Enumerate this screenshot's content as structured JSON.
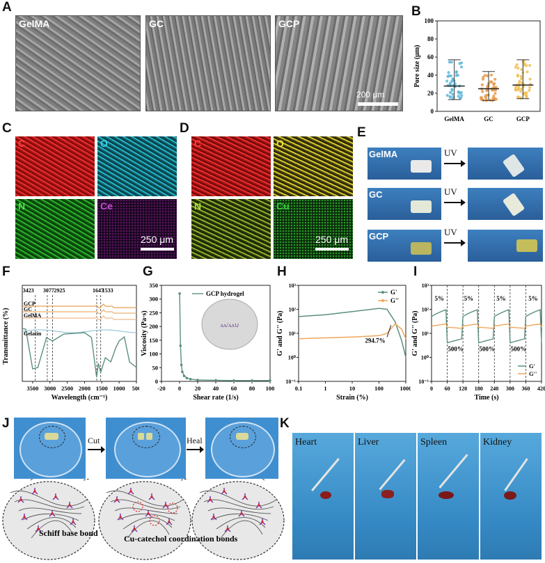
{
  "panels": {
    "A": "A",
    "B": "B",
    "C": "C",
    "D": "D",
    "E": "E",
    "F": "F",
    "G": "G",
    "H": "H",
    "I": "I",
    "J": "J",
    "K": "K"
  },
  "sem": {
    "labels": [
      "GelMA",
      "GC",
      "GCP"
    ],
    "scalebar": "200 μm"
  },
  "colors": {
    "teal": "#5b8f7f",
    "orange": "#f0a65a",
    "blueDots": "#5fb7d6",
    "orangeDots": "#e59a4a",
    "yellowDots": "#f0bf55",
    "C": "#e02020",
    "O_c": "#26b3c7",
    "N": "#2bb02b",
    "Ce": "#9a2ba0",
    "O_d": "#d6c72b",
    "Cu": "#2a9a2a"
  },
  "edsC": {
    "labels": [
      "C",
      "O",
      "N",
      "Ce"
    ],
    "scalebar": "250 μm"
  },
  "edsD": {
    "labels": [
      "C",
      "O",
      "N",
      "Cu"
    ],
    "scalebar": "250 μm"
  },
  "panelE": {
    "rows": [
      "GelMA",
      "GC",
      "GCP"
    ],
    "arrow": "UV"
  },
  "panelJ": {
    "cut": "Cut",
    "heal": "Heal",
    "bond1": "Schiff base bond",
    "bond2": "Cu-catechol coordination bonds"
  },
  "panelK": {
    "organs": [
      "Heart",
      "Liver",
      "Spleen",
      "Kidney"
    ]
  },
  "chart_data": [
    {
      "id": "B",
      "type": "scatter",
      "ylabel": "Pore size (μm)",
      "categories": [
        "GelMA",
        "GC",
        "GCP"
      ],
      "ylim": [
        0,
        100
      ],
      "yticks": [
        0,
        20,
        40,
        60,
        80,
        100
      ],
      "mean": [
        28,
        25,
        29
      ],
      "upper": [
        57,
        44,
        57
      ],
      "lower": [
        13,
        12,
        14
      ]
    },
    {
      "id": "F",
      "type": "line",
      "xlabel": "Wavelength (cm⁻¹)",
      "ylabel": "Transmittance (%)",
      "xticks": [
        3500,
        3000,
        2500,
        2000,
        1500,
        1000,
        500
      ],
      "series": [
        {
          "name": "GCP"
        },
        {
          "name": "GC"
        },
        {
          "name": "GelMA"
        },
        {
          "name": "Gelatin"
        }
      ],
      "annotations": [
        "3423",
        "3077",
        "2925",
        "1647",
        "1533"
      ]
    },
    {
      "id": "G",
      "type": "line",
      "xlabel": "Shear rate (1/s)",
      "ylabel": "Viscosity (Pa·s)",
      "xlim": [
        -20,
        100
      ],
      "ylim": [
        0,
        350
      ],
      "xticks": [
        -20,
        0,
        20,
        40,
        60,
        80,
        100
      ],
      "yticks": [
        0,
        50,
        100,
        150,
        200,
        250,
        300,
        350
      ],
      "series": [
        {
          "name": "GCP hydrogel",
          "x": [
            0.1,
            1,
            2,
            3,
            5,
            8,
            12,
            20,
            40,
            60,
            80,
            100
          ],
          "y": [
            320,
            130,
            60,
            35,
            20,
            12,
            8,
            5,
            4,
            3,
            3,
            3
          ]
        }
      ]
    },
    {
      "id": "H",
      "type": "line",
      "xlabel": "Strain (%)",
      "ylabel": "G' and G'' (Pa)",
      "xlim": [
        0.1,
        1000
      ],
      "ylim": [
        0.1,
        1000
      ],
      "xticks": [
        "0.1",
        "1",
        "10",
        "100",
        "1000"
      ],
      "yticks": [
        "10⁻¹",
        "10⁰",
        "10¹",
        "10²",
        "10³"
      ],
      "series": [
        {
          "name": "G'",
          "x": [
            0.1,
            1,
            10,
            100,
            200,
            400,
            700,
            1000
          ],
          "y": [
            50,
            60,
            80,
            110,
            100,
            30,
            5,
            1
          ]
        },
        {
          "name": "G''",
          "x": [
            0.1,
            1,
            10,
            100,
            200,
            400,
            700,
            1000
          ],
          "y": [
            6,
            6.5,
            7,
            8,
            10,
            25,
            15,
            6
          ]
        }
      ],
      "annotation": "294.7%"
    },
    {
      "id": "I",
      "type": "line",
      "xlabel": "Time (s)",
      "ylabel": "G' and G'' (Pa)",
      "xlim": [
        0,
        420
      ],
      "xticks": [
        0,
        60,
        120,
        180,
        240,
        300,
        360,
        420
      ],
      "yticks": [
        "10⁻¹",
        "10⁰",
        "10¹",
        "10²",
        "10³"
      ],
      "series": [
        {
          "name": "G'"
        },
        {
          "name": "G''"
        }
      ],
      "annotations": [
        "5%",
        "500%",
        "5%",
        "500%",
        "5%",
        "500%",
        "5%"
      ]
    }
  ]
}
